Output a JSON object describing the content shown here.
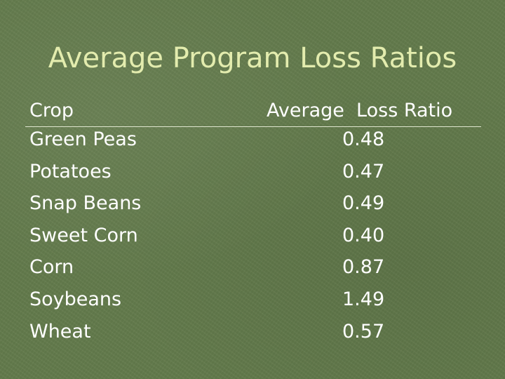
{
  "slide": {
    "title": "Average Program Loss Ratios"
  },
  "table": {
    "headers": {
      "crop": "Crop",
      "ratio": "Average  Loss Ratio"
    },
    "rows": [
      {
        "crop": "Green Peas",
        "ratio": "0.48"
      },
      {
        "crop": "Potatoes",
        "ratio": "0.47"
      },
      {
        "crop": "Snap Beans",
        "ratio": "0.49"
      },
      {
        "crop": "Sweet Corn",
        "ratio": "0.40"
      },
      {
        "crop": "Corn",
        "ratio": "0.87"
      },
      {
        "crop": "Soybeans",
        "ratio": "1.49"
      },
      {
        "crop": "Wheat",
        "ratio": "0.57"
      }
    ]
  }
}
